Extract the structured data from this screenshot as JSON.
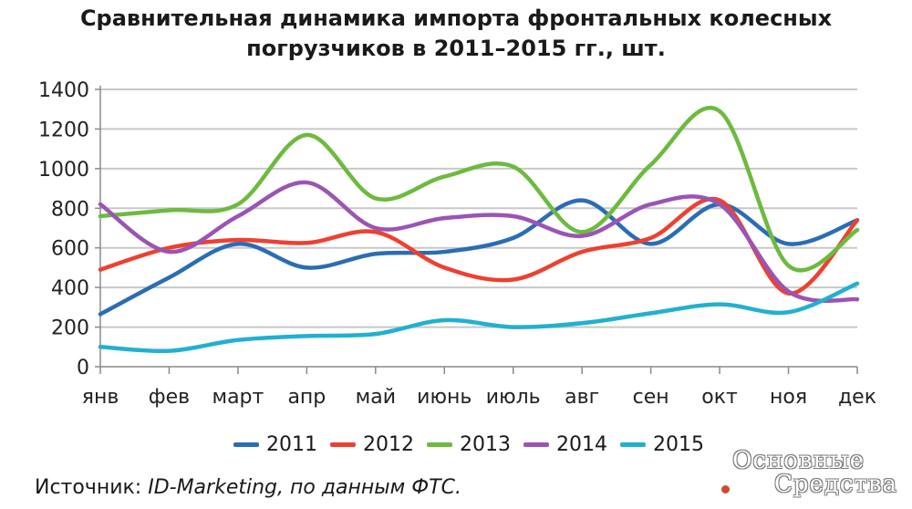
{
  "title_line1": "Сравнительная динамика импорта фронтальных колесных",
  "title_line2": "погрузчиков в 2011–2015 гг., шт.",
  "source_prefix": "Источник: ",
  "source_italic": "ID-Marketing, по данным ФТС.",
  "watermark_line1": "Основные",
  "watermark_line2": "Средства",
  "chart_data": {
    "type": "line",
    "categories": [
      "янв",
      "фев",
      "март",
      "апр",
      "май",
      "июнь",
      "июль",
      "авг",
      "сен",
      "окт",
      "ноя",
      "дек"
    ],
    "ylim": [
      0,
      1400
    ],
    "yticks": [
      0,
      200,
      400,
      600,
      800,
      1000,
      1200,
      1400
    ],
    "grid": true,
    "legend_position": "bottom",
    "series": [
      {
        "name": "2011",
        "color": "#2a6db4",
        "values": [
          265,
          450,
          620,
          500,
          570,
          580,
          650,
          840,
          620,
          820,
          620,
          740
        ]
      },
      {
        "name": "2012",
        "color": "#ee4030",
        "values": [
          490,
          600,
          640,
          625,
          680,
          500,
          440,
          580,
          650,
          840,
          370,
          740
        ]
      },
      {
        "name": "2013",
        "color": "#6dba3f",
        "values": [
          760,
          790,
          820,
          1170,
          850,
          960,
          1010,
          680,
          1020,
          1290,
          510,
          690
        ]
      },
      {
        "name": "2014",
        "color": "#9a55b4",
        "values": [
          820,
          580,
          760,
          930,
          700,
          750,
          760,
          660,
          820,
          820,
          380,
          340
        ]
      },
      {
        "name": "2015",
        "color": "#22b0d0",
        "values": [
          100,
          80,
          135,
          155,
          165,
          235,
          200,
          220,
          270,
          315,
          275,
          420
        ]
      }
    ]
  }
}
